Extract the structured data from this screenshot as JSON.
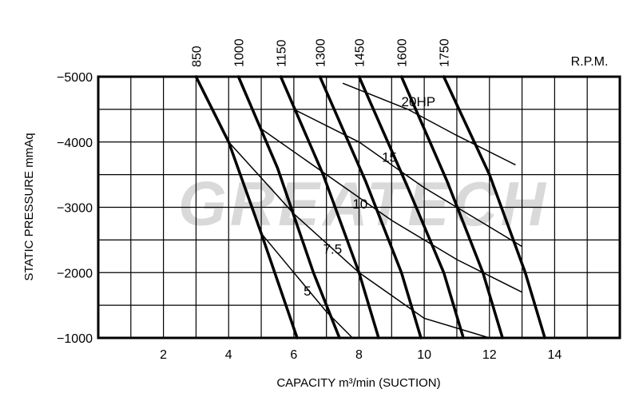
{
  "watermark": "GREATECH",
  "chart_data": {
    "type": "line",
    "xlabel": "CAPACITY m³/min (SUCTION)",
    "ylabel": "STATIC PRESSURE mmAq",
    "x_ticks": [
      2,
      4,
      6,
      8,
      10,
      12,
      14
    ],
    "x_tick_labels": [
      "2",
      "4",
      "6",
      "8",
      "10",
      "12",
      "14"
    ],
    "y_ticks": [
      -5000,
      -4000,
      -3000,
      -2000,
      -1000
    ],
    "y_tick_labels": [
      "−5000",
      "−4000",
      "−3000",
      "−2000",
      "−1000"
    ],
    "xlim": [
      0,
      16
    ],
    "ylim": [
      -5000,
      -1000
    ],
    "rpm_label": "R.P.M.",
    "rpm_series": [
      {
        "name": "850",
        "points": [
          [
            3.0,
            -5000
          ],
          [
            4.0,
            -4000
          ],
          [
            5.0,
            -2600
          ],
          [
            6.1,
            -1000
          ]
        ]
      },
      {
        "name": "1000",
        "points": [
          [
            4.3,
            -5000
          ],
          [
            5.5,
            -3600
          ],
          [
            6.6,
            -2000
          ],
          [
            7.4,
            -1000
          ]
        ]
      },
      {
        "name": "1150",
        "points": [
          [
            5.6,
            -5000
          ],
          [
            6.9,
            -3500
          ],
          [
            8.0,
            -2000
          ],
          [
            8.6,
            -1000
          ]
        ]
      },
      {
        "name": "1300",
        "points": [
          [
            6.8,
            -5000
          ],
          [
            8.2,
            -3400
          ],
          [
            9.3,
            -2000
          ],
          [
            9.9,
            -1000
          ]
        ]
      },
      {
        "name": "1450",
        "points": [
          [
            8.0,
            -5000
          ],
          [
            9.5,
            -3300
          ],
          [
            10.6,
            -2000
          ],
          [
            11.2,
            -1000
          ]
        ]
      },
      {
        "name": "1600",
        "points": [
          [
            9.3,
            -5000
          ],
          [
            10.7,
            -3400
          ],
          [
            11.8,
            -2000
          ],
          [
            12.4,
            -1000
          ]
        ]
      },
      {
        "name": "1750",
        "points": [
          [
            10.6,
            -5000
          ],
          [
            12.0,
            -3500
          ],
          [
            13.1,
            -2000
          ],
          [
            13.7,
            -1000
          ]
        ]
      }
    ],
    "hp_series": [
      {
        "name": "5",
        "points": [
          [
            5.0,
            -2600
          ],
          [
            6.0,
            -2000
          ],
          [
            7.0,
            -1400
          ],
          [
            7.8,
            -1000
          ]
        ]
      },
      {
        "name": "7.5",
        "points": [
          [
            4.0,
            -4000
          ],
          [
            6.0,
            -2900
          ],
          [
            8.0,
            -2000
          ],
          [
            10.0,
            -1300
          ],
          [
            12.0,
            -1000
          ]
        ]
      },
      {
        "name": "10",
        "points": [
          [
            5.0,
            -4200
          ],
          [
            7.0,
            -3500
          ],
          [
            9.0,
            -2800
          ],
          [
            11.0,
            -2200
          ],
          [
            13.0,
            -1700
          ]
        ]
      },
      {
        "name": "15",
        "points": [
          [
            6.0,
            -4500
          ],
          [
            8.0,
            -4000
          ],
          [
            10.0,
            -3300
          ],
          [
            12.0,
            -2700
          ],
          [
            13.0,
            -2400
          ]
        ]
      },
      {
        "name": "20HP",
        "points": [
          [
            7.5,
            -4900
          ],
          [
            9.5,
            -4500
          ],
          [
            11.0,
            -4100
          ],
          [
            12.8,
            -3650
          ]
        ]
      }
    ],
    "hp_labels": [
      {
        "text": "20HP",
        "x": 9.3,
        "y": -4550
      },
      {
        "text": "15",
        "x": 8.7,
        "y": -3700
      },
      {
        "text": "10",
        "x": 7.8,
        "y": -2980
      },
      {
        "text": "7.5",
        "x": 6.9,
        "y": -2290
      },
      {
        "text": "5",
        "x": 6.3,
        "y": -1650
      }
    ]
  }
}
